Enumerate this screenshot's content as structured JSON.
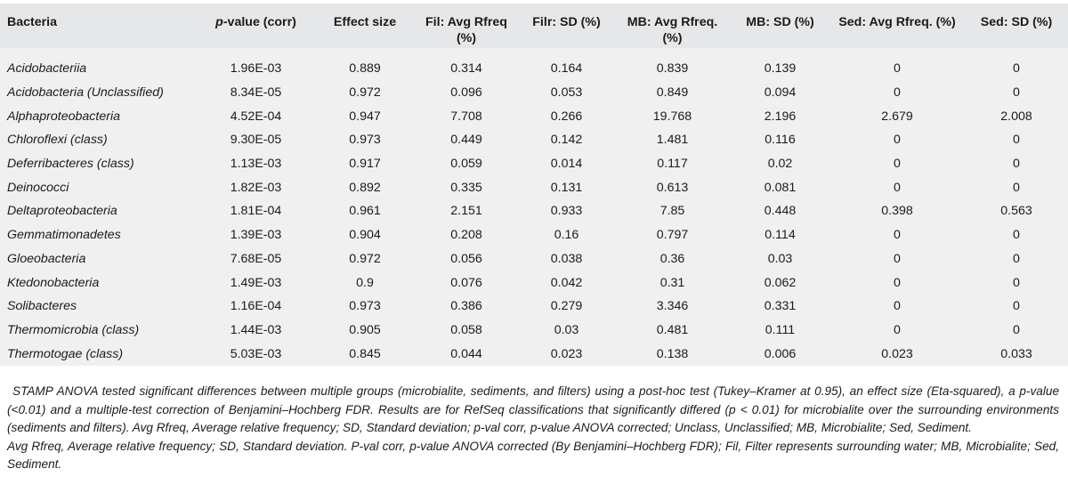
{
  "table": {
    "headers": [
      {
        "prefix": "",
        "italic": "",
        "rest": "Bacteria"
      },
      {
        "prefix": "",
        "italic": "p",
        "rest": "-value (corr)"
      },
      {
        "prefix": "Effect size",
        "italic": "",
        "rest": ""
      },
      {
        "prefix": "Fil: Avg Rfreq (%)",
        "italic": "",
        "rest": ""
      },
      {
        "prefix": "Filr: SD (%)",
        "italic": "",
        "rest": ""
      },
      {
        "prefix": "MB: Avg Rfreq. (%)",
        "italic": "",
        "rest": ""
      },
      {
        "prefix": "MB: SD (%)",
        "italic": "",
        "rest": ""
      },
      {
        "prefix": "Sed: Avg Rfreq. (%)",
        "italic": "",
        "rest": ""
      },
      {
        "prefix": "Sed: SD (%)",
        "italic": "",
        "rest": ""
      }
    ],
    "rows": [
      [
        "Acidobacteriia",
        "1.96E-03",
        "0.889",
        "0.314",
        "0.164",
        "0.839",
        "0.139",
        "0",
        "0"
      ],
      [
        "Acidobacteria (Unclassified)",
        "8.34E-05",
        "0.972",
        "0.096",
        "0.053",
        "0.849",
        "0.094",
        "0",
        "0"
      ],
      [
        "Alphaproteobacteria",
        "4.52E-04",
        "0.947",
        "7.708",
        "0.266",
        "19.768",
        "2.196",
        "2.679",
        "2.008"
      ],
      [
        "Chloroflexi (class)",
        "9.30E-05",
        "0.973",
        "0.449",
        "0.142",
        "1.481",
        "0.116",
        "0",
        "0"
      ],
      [
        "Deferribacteres (class)",
        "1.13E-03",
        "0.917",
        "0.059",
        "0.014",
        "0.117",
        "0.02",
        "0",
        "0"
      ],
      [
        "Deinococci",
        "1.82E-03",
        "0.892",
        "0.335",
        "0.131",
        "0.613",
        "0.081",
        "0",
        "0"
      ],
      [
        "Deltaproteobacteria",
        "1.81E-04",
        "0.961",
        "2.151",
        "0.933",
        "7.85",
        "0.448",
        "0.398",
        "0.563"
      ],
      [
        "Gemmatimonadetes",
        "1.39E-03",
        "0.904",
        "0.208",
        "0.16",
        "0.797",
        "0.114",
        "0",
        "0"
      ],
      [
        "Gloeobacteria",
        "7.68E-05",
        "0.972",
        "0.056",
        "0.038",
        "0.36",
        "0.03",
        "0",
        "0"
      ],
      [
        "Ktedonobacteria",
        "1.49E-03",
        "0.9",
        "0.076",
        "0.042",
        "0.31",
        "0.062",
        "0",
        "0"
      ],
      [
        "Solibacteres",
        "1.16E-04",
        "0.973",
        "0.386",
        "0.279",
        "3.346",
        "0.331",
        "0",
        "0"
      ],
      [
        "Thermomicrobia (class)",
        "1.44E-03",
        "0.905",
        "0.058",
        "0.03",
        "0.481",
        "0.111",
        "0",
        "0"
      ],
      [
        "Thermotogae (class)",
        "5.03E-03",
        "0.845",
        "0.044",
        "0.023",
        "0.138",
        "0.006",
        "0.023",
        "0.033"
      ]
    ]
  },
  "footnotes": [
    "STAMP ANOVA tested significant differences between multiple groups (microbialite, sediments, and filters) using a post-hoc test (Tukey–Kramer at 0.95), an effect size (Eta-squared), a p-value (<0.01) and a multiple-test correction of Benjamini–Hochberg FDR. Results are for RefSeq classifications that significantly differed (p < 0.01) for microbialite over the surrounding environments (sediments and filters). Avg Rfreq, Average relative frequency; SD, Standard deviation; p-val corr, p-value ANOVA corrected; Unclass, Unclassified; MB, Microbialite; Sed, Sediment.",
    "Avg Rfreq, Average relative frequency; SD, Standard deviation. P-val corr, p-value ANOVA corrected (By Benjamini–Hochberg FDR); Fil, Filter represents surrounding water; MB, Microbialite; Sed, Sediment."
  ]
}
